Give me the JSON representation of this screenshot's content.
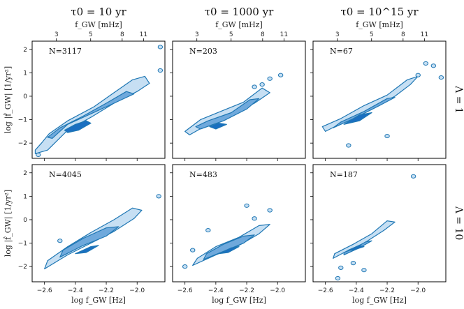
{
  "chart_data": {
    "type": "contour",
    "columns": [
      {
        "title": "τ0 = 10 yr"
      },
      {
        "title": "τ0 = 1000 yr"
      },
      {
        "title": "τ0 = 10^15 yr"
      }
    ],
    "rows": [
      {
        "label": "Λ = 1"
      },
      {
        "label": "Λ = 10"
      }
    ],
    "top_axis": {
      "label": "f_GW [mHz]",
      "ticks": [
        3,
        5,
        8,
        11
      ]
    },
    "xlabel": "log f_GW [Hz]",
    "ylabel": "log |ḟ_GW| [1/yr²]",
    "xlim": [
      -2.68,
      -1.82
    ],
    "ylim": [
      -2.65,
      2.35
    ],
    "xticks": [
      -2.6,
      -2.4,
      -2.2,
      -2.0
    ],
    "xtick_labels": [
      "−2.6",
      "−2.4",
      "−2.2",
      "−2.0"
    ],
    "yticks": [
      -2,
      -1,
      0,
      1,
      2
    ],
    "ytick_labels": [
      "−2",
      "−1",
      "0",
      "1",
      "2"
    ],
    "colors": {
      "outer": "#c6dff3",
      "mid": "#6fa9dc",
      "inner": "#1a6fc1",
      "line": "#1f77b4"
    },
    "panels": [
      {
        "row": 0,
        "col": 0,
        "count_label": "N=3117",
        "levels": [
          {
            "level": "outer",
            "polygon": [
              [
                -2.66,
                -2.45
              ],
              [
                -2.58,
                -2.3
              ],
              [
                -2.45,
                -1.45
              ],
              [
                -2.3,
                -0.9
              ],
              [
                -2.15,
                -0.3
              ],
              [
                -2.0,
                0.2
              ],
              [
                -1.92,
                0.55
              ],
              [
                -1.95,
                0.85
              ],
              [
                -2.03,
                0.7
              ],
              [
                -2.15,
                0.15
              ],
              [
                -2.28,
                -0.45
              ],
              [
                -2.45,
                -1.05
              ],
              [
                -2.57,
                -1.6
              ],
              [
                -2.62,
                -2.0
              ],
              [
                -2.66,
                -2.3
              ]
            ]
          },
          {
            "level": "mid",
            "polygon": [
              [
                -2.55,
                -1.8
              ],
              [
                -2.45,
                -1.2
              ],
              [
                -2.3,
                -0.75
              ],
              [
                -2.15,
                -0.3
              ],
              [
                -2.02,
                0.1
              ],
              [
                -2.07,
                0.2
              ],
              [
                -2.2,
                -0.3
              ],
              [
                -2.35,
                -0.85
              ],
              [
                -2.5,
                -1.35
              ],
              [
                -2.58,
                -1.75
              ]
            ]
          },
          {
            "level": "inner",
            "polygon": [
              [
                -2.47,
                -1.45
              ],
              [
                -2.4,
                -1.2
              ],
              [
                -2.33,
                -1.05
              ],
              [
                -2.3,
                -1.15
              ],
              [
                -2.38,
                -1.45
              ],
              [
                -2.45,
                -1.55
              ]
            ]
          }
        ],
        "islands": [
          [
            -2.64,
            -2.5
          ],
          [
            -1.85,
            2.1
          ],
          [
            -1.85,
            1.1
          ]
        ]
      },
      {
        "row": 0,
        "col": 1,
        "count_label": "N=203",
        "levels": [
          {
            "level": "outer",
            "polygon": [
              [
                -2.57,
                -1.65
              ],
              [
                -2.45,
                -1.2
              ],
              [
                -2.3,
                -0.8
              ],
              [
                -2.15,
                -0.3
              ],
              [
                -2.05,
                0.15
              ],
              [
                -2.1,
                0.35
              ],
              [
                -2.22,
                -0.25
              ],
              [
                -2.35,
                -0.6
              ],
              [
                -2.5,
                -1.0
              ],
              [
                -2.6,
                -1.5
              ]
            ]
          },
          {
            "level": "mid",
            "polygon": [
              [
                -2.5,
                -1.4
              ],
              [
                -2.35,
                -1.05
              ],
              [
                -2.2,
                -0.55
              ],
              [
                -2.12,
                -0.1
              ],
              [
                -2.18,
                -0.15
              ],
              [
                -2.3,
                -0.7
              ],
              [
                -2.45,
                -1.05
              ],
              [
                -2.53,
                -1.3
              ]
            ]
          },
          {
            "level": "inner",
            "polygon": [
              [
                -2.44,
                -1.3
              ],
              [
                -2.38,
                -1.15
              ],
              [
                -2.33,
                -1.2
              ],
              [
                -2.4,
                -1.4
              ]
            ]
          }
        ],
        "islands": [
          [
            -2.05,
            0.75
          ],
          [
            -1.98,
            0.9
          ],
          [
            -2.1,
            0.5
          ],
          [
            -2.15,
            0.4
          ]
        ]
      },
      {
        "row": 0,
        "col": 2,
        "count_label": "N=67",
        "levels": [
          {
            "level": "outer",
            "polygon": [
              [
                -2.6,
                -1.5
              ],
              [
                -2.45,
                -1.0
              ],
              [
                -2.3,
                -0.5
              ],
              [
                -2.15,
                0.0
              ],
              [
                -2.05,
                0.5
              ],
              [
                -2.0,
                0.85
              ],
              [
                -2.07,
                0.7
              ],
              [
                -2.2,
                0.05
              ],
              [
                -2.35,
                -0.4
              ],
              [
                -2.5,
                -0.95
              ],
              [
                -2.62,
                -1.3
              ]
            ]
          },
          {
            "level": "mid",
            "polygon": [
              [
                -2.55,
                -1.35
              ],
              [
                -2.4,
                -0.9
              ],
              [
                -2.25,
                -0.4
              ],
              [
                -2.15,
                -0.05
              ],
              [
                -2.2,
                -0.1
              ],
              [
                -2.35,
                -0.65
              ],
              [
                -2.5,
                -1.1
              ]
            ]
          },
          {
            "level": "inner",
            "polygon": [
              [
                -2.48,
                -1.2
              ],
              [
                -2.38,
                -0.8
              ],
              [
                -2.3,
                -0.7
              ],
              [
                -2.38,
                -1.05
              ]
            ]
          }
        ],
        "islands": [
          [
            -2.45,
            -2.1
          ],
          [
            -2.2,
            -1.7
          ],
          [
            -2.0,
            0.9
          ],
          [
            -1.9,
            1.3
          ],
          [
            -1.85,
            0.8
          ],
          [
            -1.95,
            1.4
          ]
        ]
      },
      {
        "row": 1,
        "col": 0,
        "count_label": "N=4045",
        "levels": [
          {
            "level": "outer",
            "polygon": [
              [
                -2.6,
                -2.1
              ],
              [
                -2.45,
                -1.5
              ],
              [
                -2.3,
                -1.0
              ],
              [
                -2.15,
                -0.5
              ],
              [
                -2.02,
                0.05
              ],
              [
                -1.97,
                0.4
              ],
              [
                -2.03,
                0.5
              ],
              [
                -2.15,
                0.0
              ],
              [
                -2.3,
                -0.55
              ],
              [
                -2.45,
                -1.15
              ],
              [
                -2.58,
                -1.75
              ]
            ]
          },
          {
            "level": "mid",
            "polygon": [
              [
                -2.5,
                -1.6
              ],
              [
                -2.35,
                -1.1
              ],
              [
                -2.2,
                -0.7
              ],
              [
                -2.12,
                -0.3
              ],
              [
                -2.2,
                -0.35
              ],
              [
                -2.35,
                -0.8
              ],
              [
                -2.48,
                -1.3
              ]
            ]
          },
          {
            "level": "inner",
            "polygon": [
              [
                -2.4,
                -1.45
              ],
              [
                -2.3,
                -1.15
              ],
              [
                -2.25,
                -1.1
              ],
              [
                -2.33,
                -1.4
              ]
            ]
          }
        ],
        "islands": [
          [
            -1.86,
            1.0
          ],
          [
            -2.5,
            -0.9
          ]
        ]
      },
      {
        "row": 1,
        "col": 1,
        "count_label": "N=483",
        "levels": [
          {
            "level": "outer",
            "polygon": [
              [
                -2.55,
                -1.95
              ],
              [
                -2.4,
                -1.5
              ],
              [
                -2.25,
                -1.1
              ],
              [
                -2.12,
                -0.6
              ],
              [
                -2.05,
                -0.2
              ],
              [
                -2.12,
                -0.25
              ],
              [
                -2.25,
                -0.75
              ],
              [
                -2.4,
                -1.15
              ],
              [
                -2.52,
                -1.65
              ]
            ]
          },
          {
            "level": "mid",
            "polygon": [
              [
                -2.48,
                -1.7
              ],
              [
                -2.35,
                -1.35
              ],
              [
                -2.22,
                -1.0
              ],
              [
                -2.15,
                -0.65
              ],
              [
                -2.22,
                -0.7
              ],
              [
                -2.35,
                -1.05
              ],
              [
                -2.46,
                -1.45
              ]
            ]
          },
          {
            "level": "inner",
            "polygon": [
              [
                -2.38,
                -1.45
              ],
              [
                -2.3,
                -1.2
              ],
              [
                -2.25,
                -1.15
              ],
              [
                -2.32,
                -1.4
              ]
            ]
          }
        ],
        "islands": [
          [
            -2.15,
            0.05
          ],
          [
            -2.05,
            0.4
          ],
          [
            -2.2,
            0.6
          ],
          [
            -2.45,
            -0.45
          ],
          [
            -2.55,
            -1.3
          ],
          [
            -2.6,
            -2.0
          ]
        ]
      },
      {
        "row": 1,
        "col": 2,
        "count_label": "N=187",
        "levels": [
          {
            "level": "outer",
            "polygon": [
              [
                -2.55,
                -1.65
              ],
              [
                -2.45,
                -1.3
              ],
              [
                -2.35,
                -1.0
              ],
              [
                -2.22,
                -0.45
              ],
              [
                -2.15,
                -0.1
              ],
              [
                -2.2,
                -0.05
              ],
              [
                -2.3,
                -0.6
              ],
              [
                -2.42,
                -1.05
              ],
              [
                -2.54,
                -1.45
              ]
            ]
          },
          {
            "level": "mid",
            "polygon": [
              [
                -2.48,
                -1.5
              ],
              [
                -2.38,
                -1.2
              ],
              [
                -2.3,
                -0.9
              ],
              [
                -2.34,
                -0.95
              ],
              [
                -2.42,
                -1.25
              ],
              [
                -2.48,
                -1.4
              ]
            ]
          },
          {
            "level": "inner",
            "polygon": [
              [
                -2.45,
                -1.3
              ],
              [
                -2.38,
                -1.1
              ],
              [
                -2.35,
                -1.15
              ],
              [
                -2.42,
                -1.3
              ]
            ]
          }
        ],
        "islands": [
          [
            -2.03,
            1.85
          ],
          [
            -2.5,
            -2.05
          ],
          [
            -2.42,
            -1.85
          ],
          [
            -2.35,
            -2.15
          ],
          [
            -2.52,
            -2.5
          ]
        ]
      }
    ]
  }
}
